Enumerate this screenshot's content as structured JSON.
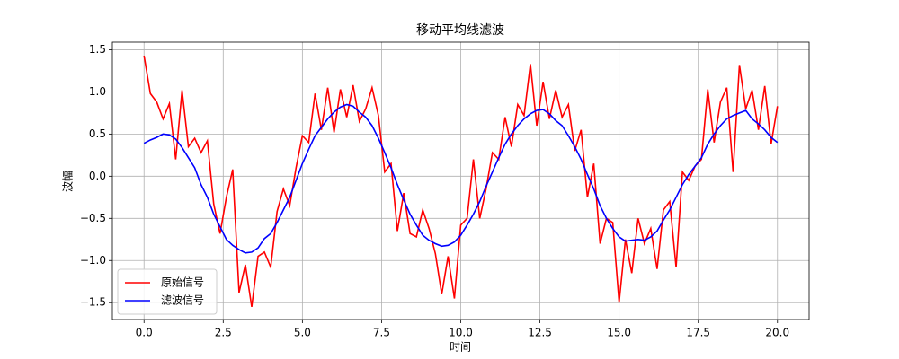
{
  "chart_data": {
    "type": "line",
    "title": "移动平均线滤波",
    "xlabel": "时间",
    "ylabel": "波幅",
    "x": [
      0,
      0.2,
      0.4,
      0.6,
      0.8,
      1,
      1.2,
      1.4,
      1.6,
      1.8,
      2,
      2.2,
      2.4,
      2.6,
      2.8,
      3,
      3.2,
      3.4,
      3.6,
      3.8,
      4,
      4.2,
      4.4,
      4.6,
      4.8,
      5,
      5.2,
      5.4,
      5.6,
      5.8,
      6,
      6.2,
      6.4,
      6.6,
      6.8,
      7,
      7.2,
      7.4,
      7.6,
      7.8,
      8,
      8.2,
      8.4,
      8.6,
      8.8,
      9,
      9.2,
      9.4,
      9.6,
      9.8,
      10,
      10.2,
      10.4,
      10.6,
      10.8,
      11,
      11.2,
      11.4,
      11.6,
      11.8,
      12,
      12.2,
      12.4,
      12.6,
      12.8,
      13,
      13.2,
      13.4,
      13.6,
      13.8,
      14,
      14.2,
      14.4,
      14.6,
      14.8,
      15,
      15.2,
      15.4,
      15.6,
      15.8,
      16,
      16.2,
      16.4,
      16.6,
      16.8,
      17,
      17.2,
      17.4,
      17.6,
      17.8,
      18,
      18.2,
      18.4,
      18.6,
      18.8,
      19,
      19.2,
      19.4,
      19.6,
      19.8,
      20
    ],
    "series": [
      {
        "name": "原始信号",
        "color": "#ff0000",
        "values": [
          1.43,
          0.98,
          0.88,
          0.68,
          0.86,
          0.2,
          1.02,
          0.35,
          0.45,
          0.28,
          0.42,
          -0.33,
          -0.68,
          -0.25,
          0.08,
          -1.38,
          -1.05,
          -1.55,
          -0.95,
          -0.9,
          -1.08,
          -0.42,
          -0.15,
          -0.35,
          0.1,
          0.48,
          0.4,
          0.98,
          0.55,
          1.05,
          0.52,
          1.03,
          0.7,
          1.08,
          0.65,
          0.8,
          1.05,
          0.72,
          0.05,
          0.15,
          -0.65,
          -0.2,
          -0.68,
          -0.72,
          -0.4,
          -0.62,
          -0.92,
          -1.4,
          -0.95,
          -1.45,
          -0.58,
          -0.5,
          0.2,
          -0.5,
          -0.15,
          0.28,
          0.2,
          0.7,
          0.35,
          0.85,
          0.72,
          1.33,
          0.6,
          1.12,
          0.68,
          1.02,
          0.7,
          0.85,
          0.3,
          0.55,
          -0.25,
          0.15,
          -0.8,
          -0.5,
          -0.55,
          -1.5,
          -0.75,
          -1.15,
          -0.5,
          -0.8,
          -0.62,
          -1.1,
          -0.4,
          -0.3,
          -1.08,
          0.05,
          -0.05,
          0.12,
          0.2,
          1.03,
          0.4,
          0.88,
          1.05,
          0.05,
          1.32,
          0.8,
          1.02,
          0.55,
          1.07,
          0.38,
          0.83
        ]
      },
      {
        "name": "滤波信号",
        "color": "#0000ff",
        "values": [
          0.39,
          0.43,
          0.46,
          0.5,
          0.49,
          0.44,
          0.34,
          0.22,
          0.1,
          -0.1,
          -0.25,
          -0.45,
          -0.6,
          -0.75,
          -0.82,
          -0.87,
          -0.91,
          -0.9,
          -0.85,
          -0.74,
          -0.68,
          -0.55,
          -0.4,
          -0.25,
          -0.05,
          0.15,
          0.32,
          0.48,
          0.58,
          0.68,
          0.76,
          0.82,
          0.85,
          0.83,
          0.76,
          0.7,
          0.6,
          0.45,
          0.28,
          0.1,
          -0.1,
          -0.28,
          -0.45,
          -0.58,
          -0.7,
          -0.76,
          -0.8,
          -0.83,
          -0.82,
          -0.78,
          -0.7,
          -0.58,
          -0.45,
          -0.3,
          -0.12,
          0.05,
          0.22,
          0.38,
          0.5,
          0.6,
          0.68,
          0.74,
          0.78,
          0.79,
          0.74,
          0.66,
          0.6,
          0.48,
          0.35,
          0.2,
          0.02,
          -0.15,
          -0.35,
          -0.5,
          -0.62,
          -0.72,
          -0.77,
          -0.76,
          -0.75,
          -0.76,
          -0.72,
          -0.65,
          -0.52,
          -0.4,
          -0.25,
          -0.1,
          0.02,
          0.12,
          0.22,
          0.38,
          0.5,
          0.6,
          0.68,
          0.72,
          0.75,
          0.78,
          0.68,
          0.62,
          0.55,
          0.46,
          0.4
        ]
      }
    ],
    "xlim": [
      -1,
      21
    ],
    "ylim": [
      -1.7,
      1.59
    ],
    "xticks": [
      {
        "value": 0,
        "label": "0.0"
      },
      {
        "value": 2.5,
        "label": "2.5"
      },
      {
        "value": 5,
        "label": "5.0"
      },
      {
        "value": 7.5,
        "label": "7.5"
      },
      {
        "value": 10,
        "label": "10.0"
      },
      {
        "value": 12.5,
        "label": "12.5"
      },
      {
        "value": 15,
        "label": "15.0"
      },
      {
        "value": 17.5,
        "label": "17.5"
      },
      {
        "value": 20,
        "label": "20.0"
      }
    ],
    "yticks": [
      {
        "value": -1.5,
        "label": "−1.5"
      },
      {
        "value": -1,
        "label": "−1.0"
      },
      {
        "value": -0.5,
        "label": "−0.5"
      },
      {
        "value": 0,
        "label": "0.0"
      },
      {
        "value": 0.5,
        "label": "0.5"
      },
      {
        "value": 1,
        "label": "1.0"
      },
      {
        "value": 1.5,
        "label": "1.5"
      }
    ],
    "grid": true,
    "legend": "lower left"
  }
}
